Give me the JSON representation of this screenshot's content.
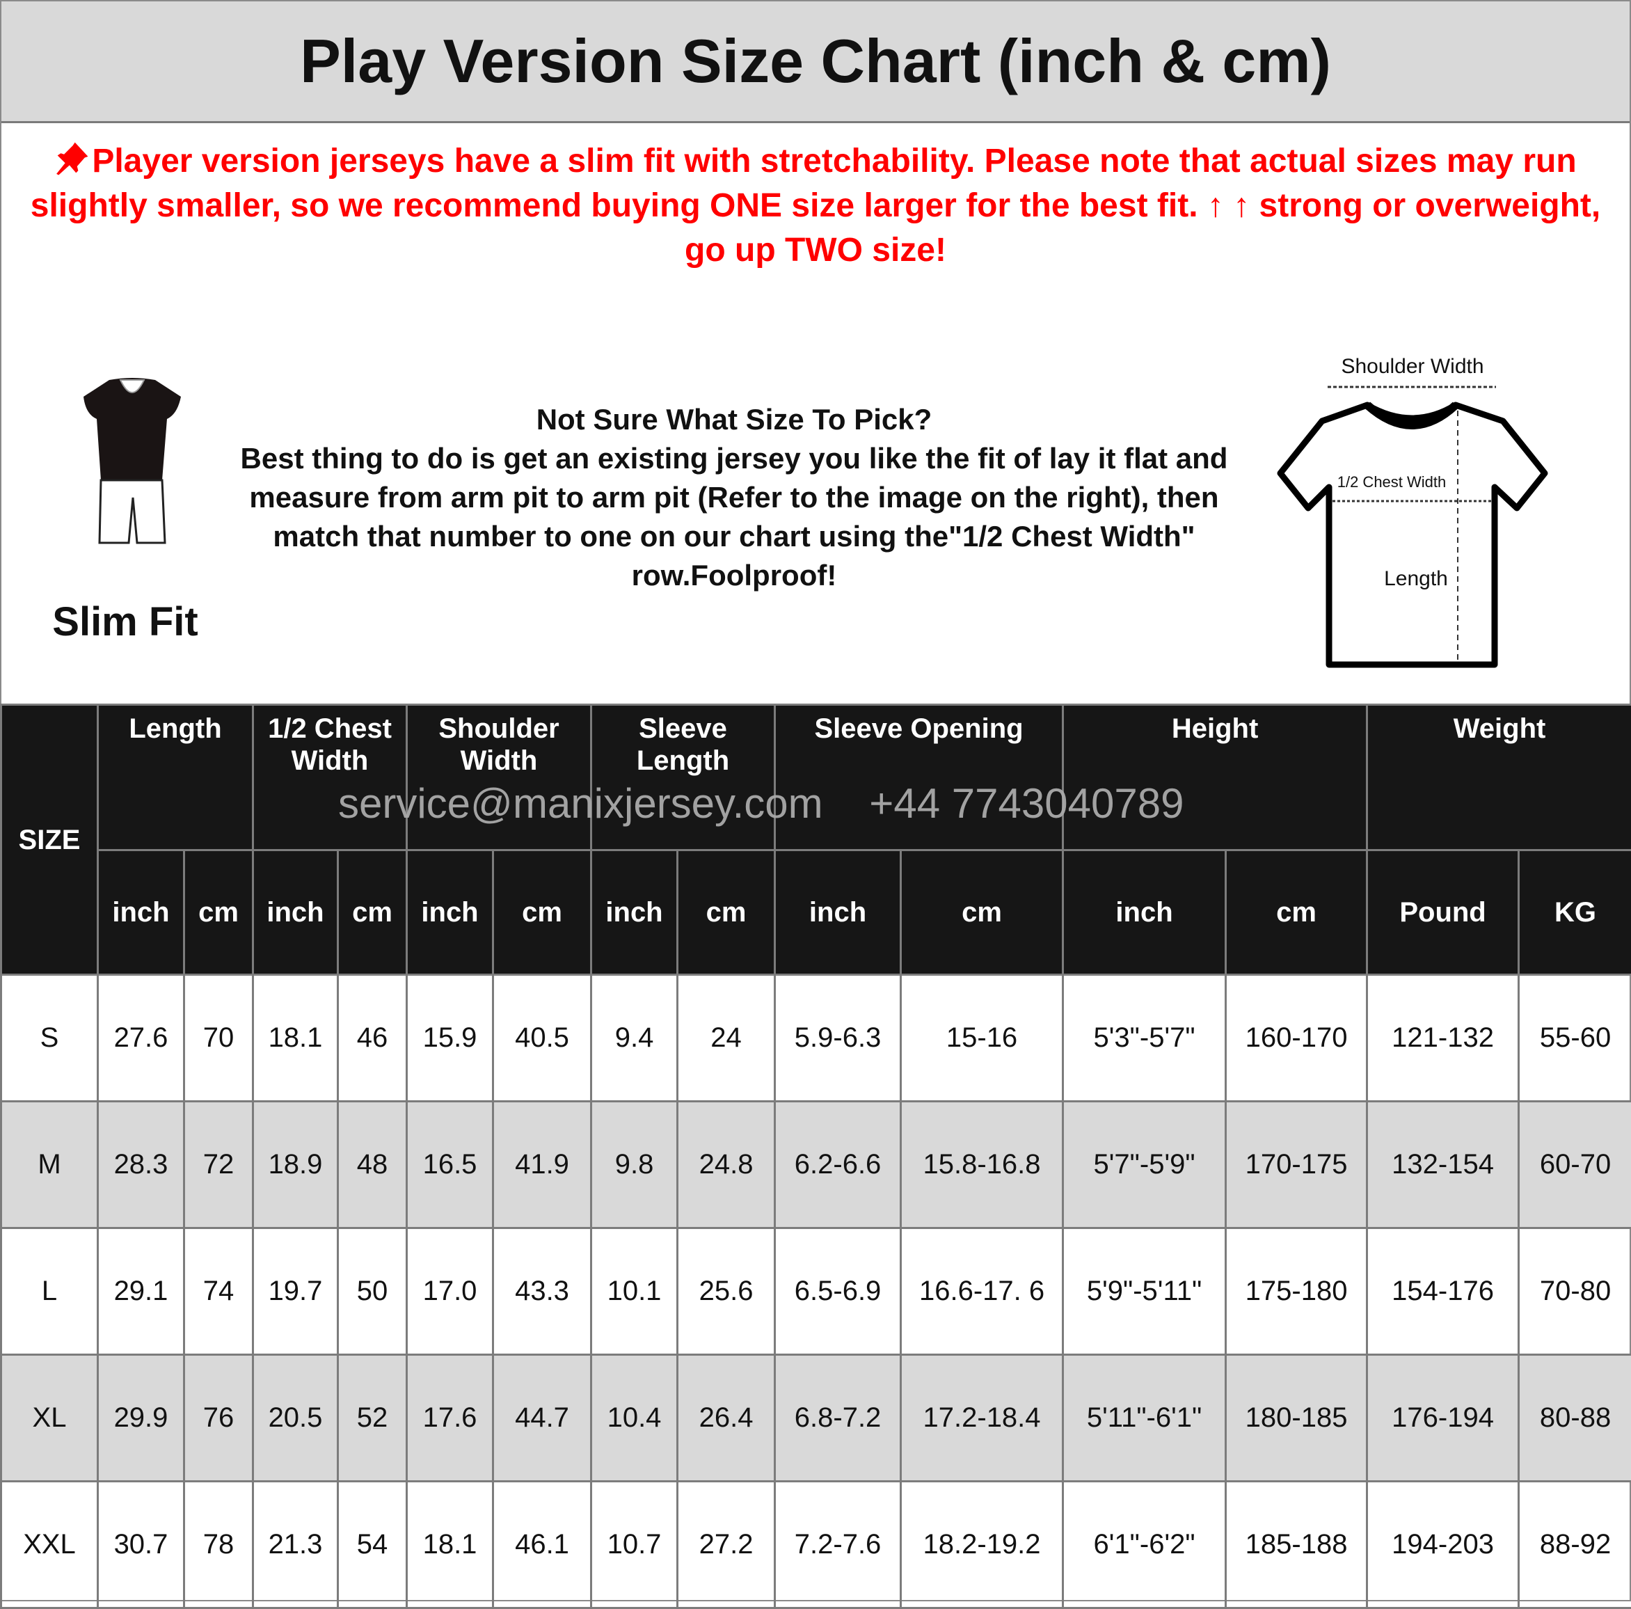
{
  "title": "Play Version Size Chart (inch & cm)",
  "notice": {
    "icon": "pushpin-icon",
    "color": "#ff0000",
    "lines": [
      "Player version jerseys have a slim fit with stretchability. Please note that actual sizes may run",
      "slightly smaller, so we recommend buying ONE size larger for the best fit. ↑ ↑ strong or overweight,",
      "go up TWO size!"
    ]
  },
  "fit_label": "Slim Fit",
  "help": {
    "lines": [
      "Not Sure What Size To Pick?",
      "Best thing to do is get an existing jersey you like the fit of lay it",
      "flat and measure from arm pit to arm pit (Refer to the image on",
      "the right), then match that number to one on our chart using",
      "the\"1/2 Chest Width\" row.Foolproof!"
    ]
  },
  "diagram": {
    "shoulder": "Shoulder Width",
    "chest": "1/2 Chest Width",
    "length": "Length"
  },
  "watermark": "service@manixjersey.com    +44 7743040789",
  "table": {
    "size_header": "SIZE",
    "groups": [
      "Length",
      "1/2 Chest Width",
      "Shoulder Width",
      "Sleeve Length",
      "Sleeve Opening",
      "Height",
      "Weight"
    ],
    "units": [
      "inch",
      "cm",
      "inch",
      "cm",
      "inch",
      "cm",
      "inch",
      "cm",
      "inch",
      "cm",
      "inch",
      "cm",
      "Pound",
      "KG"
    ],
    "rows": [
      [
        "S",
        "27.6",
        "70",
        "18.1",
        "46",
        "15.9",
        "40.5",
        "9.4",
        "24",
        "5.9-6.3",
        "15-16",
        "5'3\"-5'7\"",
        "160-170",
        "121-132",
        "55-60"
      ],
      [
        "M",
        "28.3",
        "72",
        "18.9",
        "48",
        "16.5",
        "41.9",
        "9.8",
        "24.8",
        "6.2-6.6",
        "15.8-16.8",
        "5'7\"-5'9\"",
        "170-175",
        "132-154",
        "60-70"
      ],
      [
        "L",
        "29.1",
        "74",
        "19.7",
        "50",
        "17.0",
        "43.3",
        "10.1",
        "25.6",
        "6.5-6.9",
        "16.6-17. 6",
        "5'9\"-5'11\"",
        "175-180",
        "154-176",
        "70-80"
      ],
      [
        "XL",
        "29.9",
        "76",
        "20.5",
        "52",
        "17.6",
        "44.7",
        "10.4",
        "26.4",
        "6.8-7.2",
        "17.2-18.4",
        "5'11\"-6'1\"",
        "180-185",
        "176-194",
        "80-88"
      ],
      [
        "XXL",
        "30.7",
        "78",
        "21.3",
        "54",
        "18.1",
        "46.1",
        "10.7",
        "27.2",
        "7.2-7.6",
        "18.2-19.2",
        "6'1\"-6'2\"",
        "185-188",
        "194-203",
        "88-92"
      ]
    ]
  }
}
